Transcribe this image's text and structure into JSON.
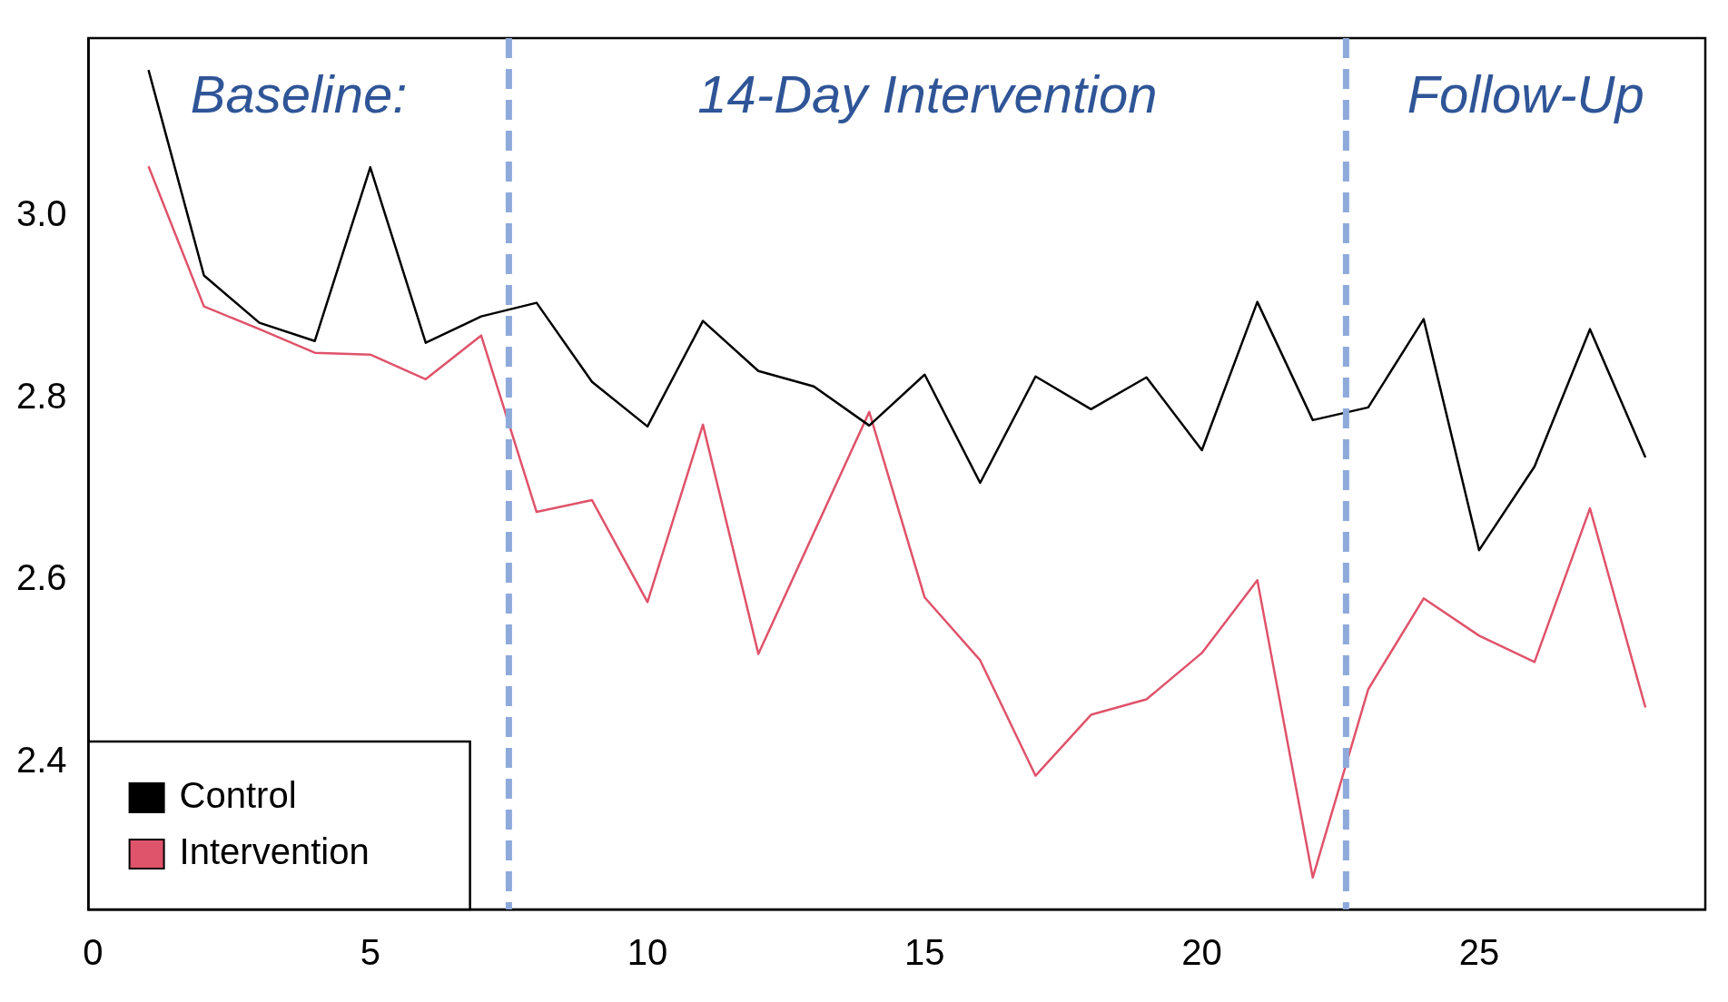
{
  "chart_data": {
    "type": "line",
    "x": [
      1,
      2,
      3,
      4,
      5,
      6,
      7,
      8,
      9,
      10,
      11,
      12,
      13,
      14,
      15,
      16,
      17,
      18,
      19,
      20,
      21,
      22,
      23,
      24,
      25,
      26,
      27,
      28
    ],
    "series": [
      {
        "name": "Control",
        "color": "#000000",
        "values": [
          3.161,
          2.935,
          2.883,
          2.863,
          3.054,
          2.861,
          2.89,
          2.905,
          2.818,
          2.769,
          2.885,
          2.83,
          2.813,
          2.77,
          2.826,
          2.707,
          2.824,
          2.788,
          2.823,
          2.743,
          2.906,
          2.776,
          2.79,
          2.887,
          2.633,
          2.725,
          2.876,
          2.735
        ]
      },
      {
        "name": "Intervention",
        "color": "#df536b",
        "values": [
          3.055,
          2.901,
          2.876,
          2.85,
          2.848,
          2.821,
          2.869,
          2.675,
          2.688,
          2.576,
          2.771,
          2.519,
          2.652,
          2.785,
          2.581,
          2.512,
          2.385,
          2.452,
          2.469,
          2.52,
          2.6,
          2.273,
          2.48,
          2.58,
          2.539,
          2.51,
          2.679,
          2.46
        ]
      }
    ],
    "xlim": [
      -0.08,
      29.08
    ],
    "xticks": [
      0,
      5,
      10,
      15,
      20,
      25
    ],
    "ylim": [
      2.238,
      3.196
    ],
    "yticks": [
      2.4,
      2.6,
      2.8,
      {
        "value": 3.0,
        "label": "3.0"
      }
    ],
    "ref_lines": [
      {
        "axis": "x",
        "value": 7.5,
        "color": "#8eaadb",
        "line_style": "dashed"
      },
      {
        "axis": "x",
        "value": 22.6,
        "color": "#8eaadb",
        "line_style": "dashed"
      }
    ],
    "annotations": [
      "Baseline:",
      "14-Day Intervention",
      "Follow-Up"
    ],
    "grid": false,
    "legend": "bottom left",
    "marker": "none",
    "line_style": "solid"
  }
}
